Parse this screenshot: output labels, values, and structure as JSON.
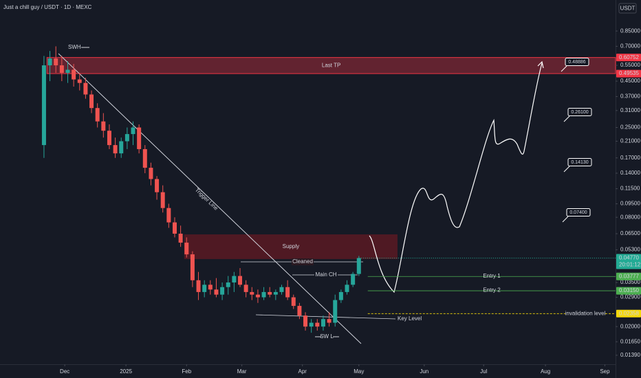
{
  "title": "Just a chill guy / USDT · 1D · MEXC",
  "currency": "USDT",
  "chart_data": {
    "type": "candlestick",
    "log_scale": true,
    "ylim": [
      0.0124,
      1.26
    ],
    "xlim": [
      -7.4,
      96.2
    ],
    "yticks": [
      {
        "value": 0.85,
        "label": "0.85000"
      },
      {
        "value": 0.7,
        "label": "0.70000"
      },
      {
        "value": 0.55,
        "label": "0.55000"
      },
      {
        "value": 0.45,
        "label": "0.45000"
      },
      {
        "value": 0.37,
        "label": "0.37000"
      },
      {
        "value": 0.31,
        "label": "0.31000"
      },
      {
        "value": 0.25,
        "label": "0.25000"
      },
      {
        "value": 0.21,
        "label": "0.21000"
      },
      {
        "value": 0.17,
        "label": "0.17000"
      },
      {
        "value": 0.14,
        "label": "0.14000"
      },
      {
        "value": 0.115,
        "label": "0.11500"
      },
      {
        "value": 0.095,
        "label": "0.09500"
      },
      {
        "value": 0.08,
        "label": "0.08000"
      },
      {
        "value": 0.065,
        "label": "0.06500"
      },
      {
        "value": 0.053,
        "label": "0.05300"
      },
      {
        "value": 0.035,
        "label": "0.03500"
      },
      {
        "value": 0.029,
        "label": "0.02900"
      },
      {
        "value": 0.02,
        "label": "0.02000"
      },
      {
        "value": 0.0165,
        "label": "0.01650"
      },
      {
        "value": 0.0139,
        "label": "0.01390"
      }
    ],
    "xticks": [
      {
        "value": 3.5,
        "label": "Dec"
      },
      {
        "value": 13.8,
        "label": "2025"
      },
      {
        "value": 24,
        "label": "Feb"
      },
      {
        "value": 33.3,
        "label": "Mar"
      },
      {
        "value": 43.5,
        "label": "Apr"
      },
      {
        "value": 53,
        "label": "May"
      },
      {
        "value": 64,
        "label": "Jun"
      },
      {
        "value": 74,
        "label": "Jul"
      },
      {
        "value": 84.4,
        "label": "Aug"
      },
      {
        "value": 94.4,
        "label": "Sep"
      }
    ],
    "open": [
      0.2,
      0.55,
      0.6,
      0.55,
      0.5,
      0.52,
      0.46,
      0.44,
      0.38,
      0.32,
      0.27,
      0.24,
      0.2,
      0.18,
      0.21,
      0.23,
      0.25,
      0.19,
      0.15,
      0.13,
      0.11,
      0.09,
      0.075,
      0.065,
      0.058,
      0.05,
      0.036,
      0.031,
      0.034,
      0.032,
      0.03,
      0.033,
      0.035,
      0.038,
      0.034,
      0.031,
      0.03,
      0.029,
      0.031,
      0.03,
      0.031,
      0.033,
      0.029,
      0.026,
      0.023,
      0.02,
      0.021,
      0.02,
      0.022,
      0.021,
      0.028,
      0.031,
      0.034,
      0.039
    ],
    "high": [
      0.62,
      0.66,
      0.7,
      0.62,
      0.58,
      0.56,
      0.5,
      0.47,
      0.4,
      0.34,
      0.3,
      0.26,
      0.22,
      0.22,
      0.25,
      0.27,
      0.26,
      0.2,
      0.16,
      0.135,
      0.12,
      0.095,
      0.08,
      0.072,
      0.062,
      0.052,
      0.04,
      0.036,
      0.036,
      0.037,
      0.035,
      0.038,
      0.04,
      0.042,
      0.036,
      0.033,
      0.032,
      0.033,
      0.033,
      0.032,
      0.034,
      0.036,
      0.03,
      0.027,
      0.024,
      0.022,
      0.022,
      0.023,
      0.024,
      0.03,
      0.032,
      0.036,
      0.04,
      0.049
    ],
    "low": [
      0.17,
      0.45,
      0.5,
      0.45,
      0.44,
      0.42,
      0.4,
      0.36,
      0.3,
      0.25,
      0.22,
      0.19,
      0.17,
      0.17,
      0.19,
      0.2,
      0.18,
      0.14,
      0.12,
      0.1,
      0.085,
      0.07,
      0.062,
      0.055,
      0.048,
      0.033,
      0.028,
      0.029,
      0.03,
      0.029,
      0.028,
      0.03,
      0.031,
      0.033,
      0.029,
      0.028,
      0.027,
      0.028,
      0.029,
      0.028,
      0.03,
      0.028,
      0.025,
      0.022,
      0.019,
      0.0185,
      0.019,
      0.019,
      0.02,
      0.02,
      0.027,
      0.03,
      0.033,
      0.038
    ],
    "close": [
      0.55,
      0.6,
      0.55,
      0.5,
      0.52,
      0.46,
      0.44,
      0.38,
      0.32,
      0.27,
      0.24,
      0.2,
      0.18,
      0.21,
      0.23,
      0.25,
      0.19,
      0.15,
      0.13,
      0.11,
      0.09,
      0.075,
      0.065,
      0.058,
      0.05,
      0.036,
      0.031,
      0.034,
      0.032,
      0.03,
      0.033,
      0.035,
      0.038,
      0.034,
      0.031,
      0.03,
      0.029,
      0.031,
      0.03,
      0.031,
      0.033,
      0.029,
      0.026,
      0.023,
      0.02,
      0.021,
      0.02,
      0.022,
      0.021,
      0.028,
      0.031,
      0.034,
      0.039,
      0.0477
    ],
    "up_color": "#26a69a",
    "down_color": "#ef5350",
    "last_price": {
      "value": 0.0477,
      "label": "0.04770",
      "countdown": "20:01:12",
      "color": "#22ab94"
    },
    "zones": [
      {
        "name": "Last TP",
        "low": 0.49535,
        "high": 0.60752,
        "low_label": "0.49535",
        "high_label": "0.60752",
        "x": [
          0.5,
          96.2
        ],
        "color": "#f23645"
      },
      {
        "name": "Supply",
        "low": 0.0471,
        "high": 0.0644,
        "x": [
          23.6,
          59.5
        ],
        "color": "#801922"
      }
    ],
    "levels": [
      {
        "name": "Entry 1",
        "value": 0.03777,
        "label": "0.03777",
        "color": "#4caf50",
        "x": [
          54.5,
          96.2
        ]
      },
      {
        "name": "Entry 2",
        "value": 0.0315,
        "label": "0.03150",
        "color": "#4caf50",
        "x": [
          54.5,
          96.2
        ]
      },
      {
        "name": "invalidation level",
        "value": 0.02358,
        "label": "0.02358",
        "color": "#f5d90a",
        "x": [
          54.5,
          96.2
        ]
      }
    ],
    "targets": [
      {
        "value": 0.48886,
        "label": "0.48886"
      },
      {
        "value": 0.261,
        "label": "0.26100"
      },
      {
        "value": 0.1413,
        "label": "0.14130"
      },
      {
        "value": 0.074,
        "label": "0.07400"
      }
    ],
    "annotations": [
      "SWH",
      "Trigger Line",
      "Cleaned",
      "Main CH",
      "Key Level",
      "SW L"
    ]
  }
}
